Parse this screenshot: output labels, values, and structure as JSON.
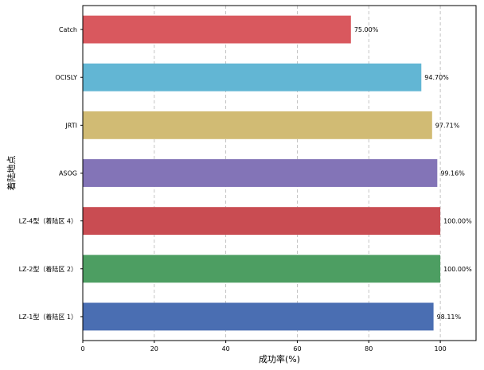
{
  "chart_data": {
    "type": "bar",
    "orientation": "horizontal",
    "categories": [
      "Catch",
      "OCISLY",
      "JRTI",
      "ASOG",
      "LZ-4型（着陆区 4）",
      "LZ-2型（着陆区 2）",
      "LZ-1型（着陆区 1）"
    ],
    "values": [
      75.0,
      94.7,
      97.71,
      99.16,
      100.0,
      100.0,
      98.11
    ],
    "value_labels": [
      "75.00%",
      "94.70%",
      "97.71%",
      "99.16%",
      "100.00%",
      "100.00%",
      "98.11%"
    ],
    "colors": [
      "#d9585e",
      "#62b6d4",
      "#d1bb74",
      "#8374b7",
      "#c94c52",
      "#4d9e62",
      "#4a6eb2"
    ],
    "xlabel": "成功率(%)",
    "ylabel": "着陆地点",
    "xlim": [
      0,
      110
    ],
    "xticks": [
      0,
      20,
      40,
      60,
      80,
      100
    ],
    "grid": "x-dashed"
  }
}
